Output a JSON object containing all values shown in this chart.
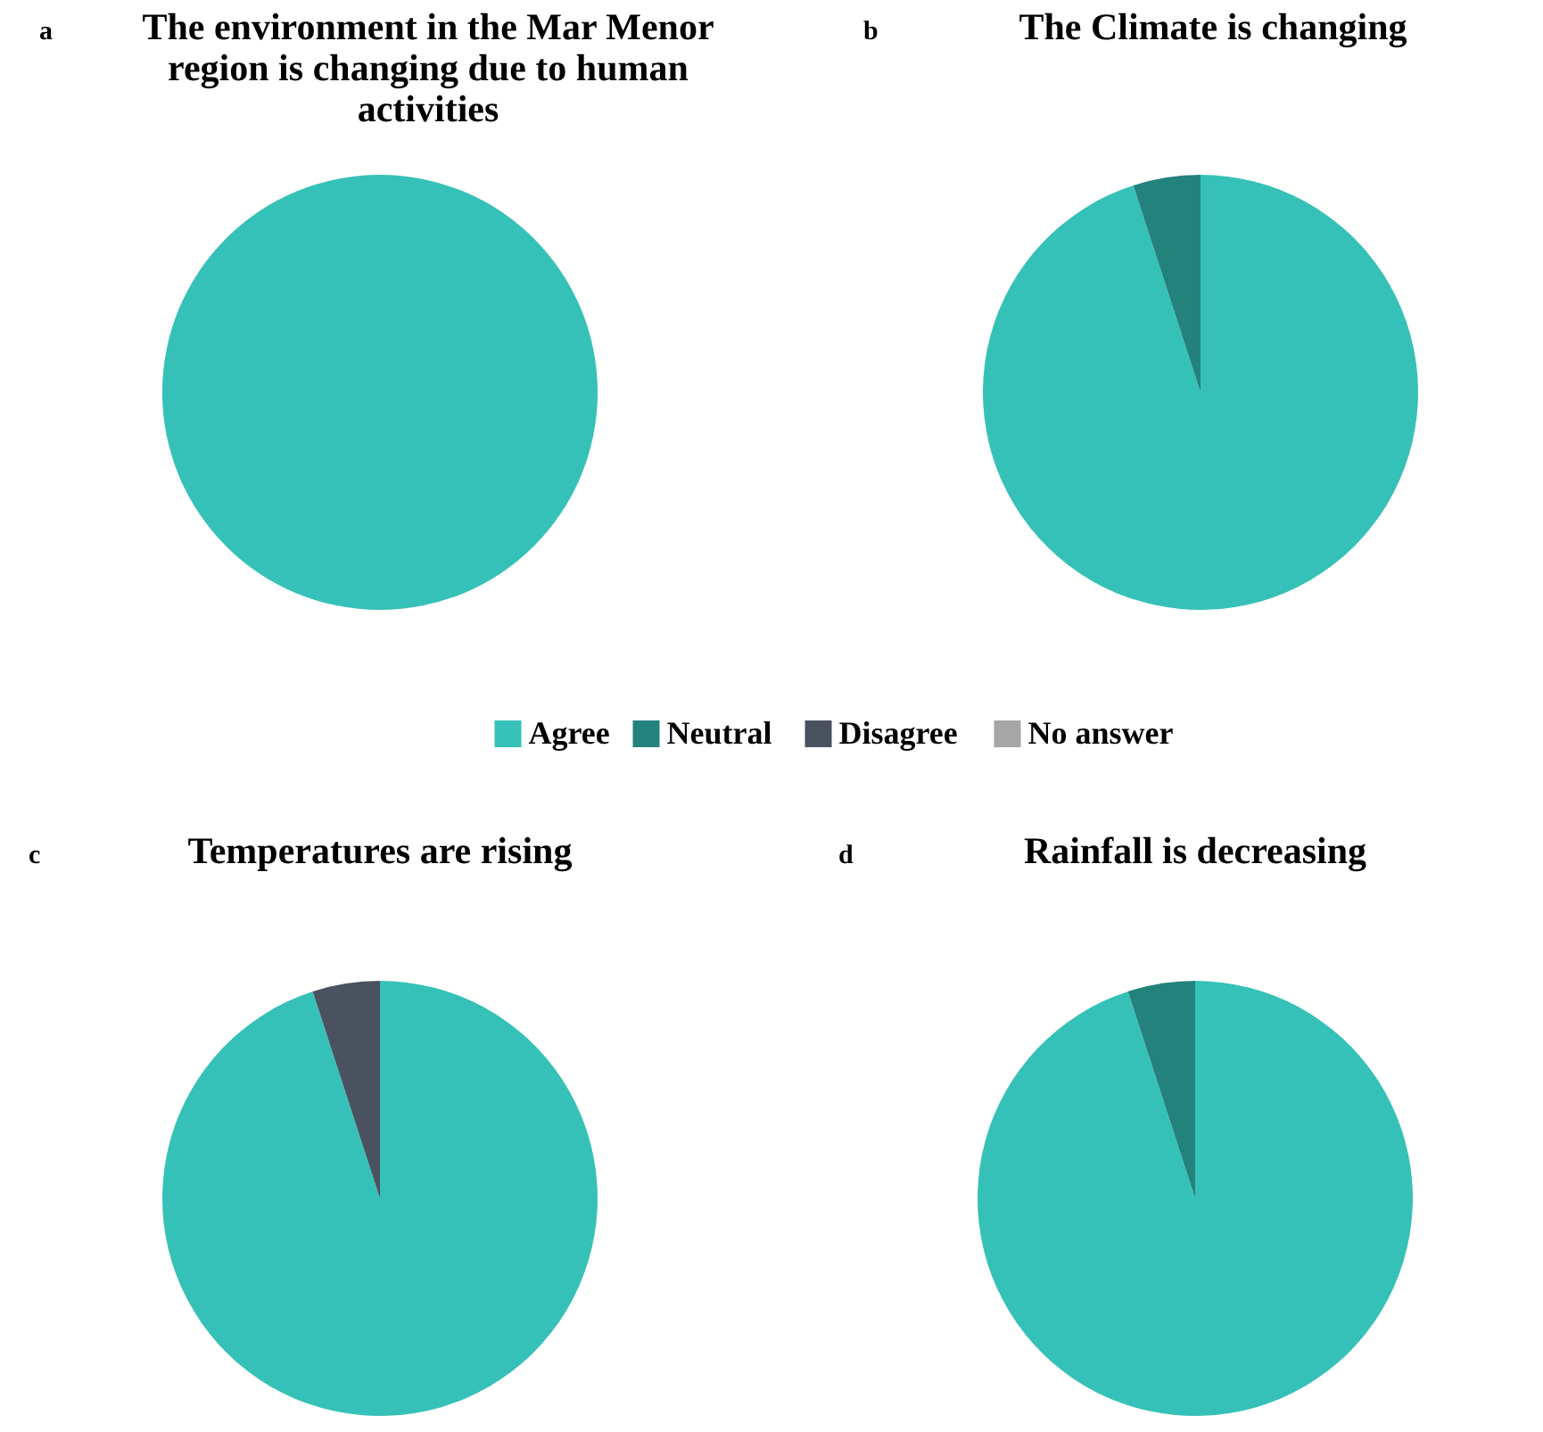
{
  "chart_data": [
    {
      "type": "pie",
      "title": "The environment in the Mar Menor region is changing due to human activities",
      "annotations": [
        "a"
      ],
      "categories": [
        "Agree",
        "Neutral",
        "Disagree",
        "No answer"
      ],
      "values": [
        100,
        0,
        0,
        0
      ],
      "colors": [
        "#36c1b8",
        "#23827c",
        "#4a5260",
        "#a6a6a6"
      ],
      "legend": "bottom"
    },
    {
      "type": "pie",
      "title": "The Climate is changing",
      "annotations": [
        "b"
      ],
      "categories": [
        null,
        null,
        null,
        null
      ],
      "values": [
        95,
        5,
        0,
        0
      ],
      "colors": [
        "#36c1b8",
        "#23827c",
        "#4a5260",
        "#a6a6a6"
      ]
    },
    {
      "type": "pie",
      "title": "Temperatures are rising",
      "annotations": [
        "c"
      ],
      "categories": [
        null,
        null,
        null,
        null
      ],
      "values": [
        95,
        0,
        5,
        0
      ],
      "colors": [
        "#36c1b8",
        "#23827c",
        "#4a5260",
        "#a6a6a6"
      ]
    },
    {
      "type": "pie",
      "title": "Rainfall is decreasing",
      "annotations": [
        "d"
      ],
      "categories": [
        null,
        null,
        null,
        null
      ],
      "values": [
        95,
        5,
        0,
        0
      ],
      "colors": [
        "#36c1b8",
        "#23827c",
        "#4a5260",
        "#a6a6a6"
      ]
    }
  ]
}
